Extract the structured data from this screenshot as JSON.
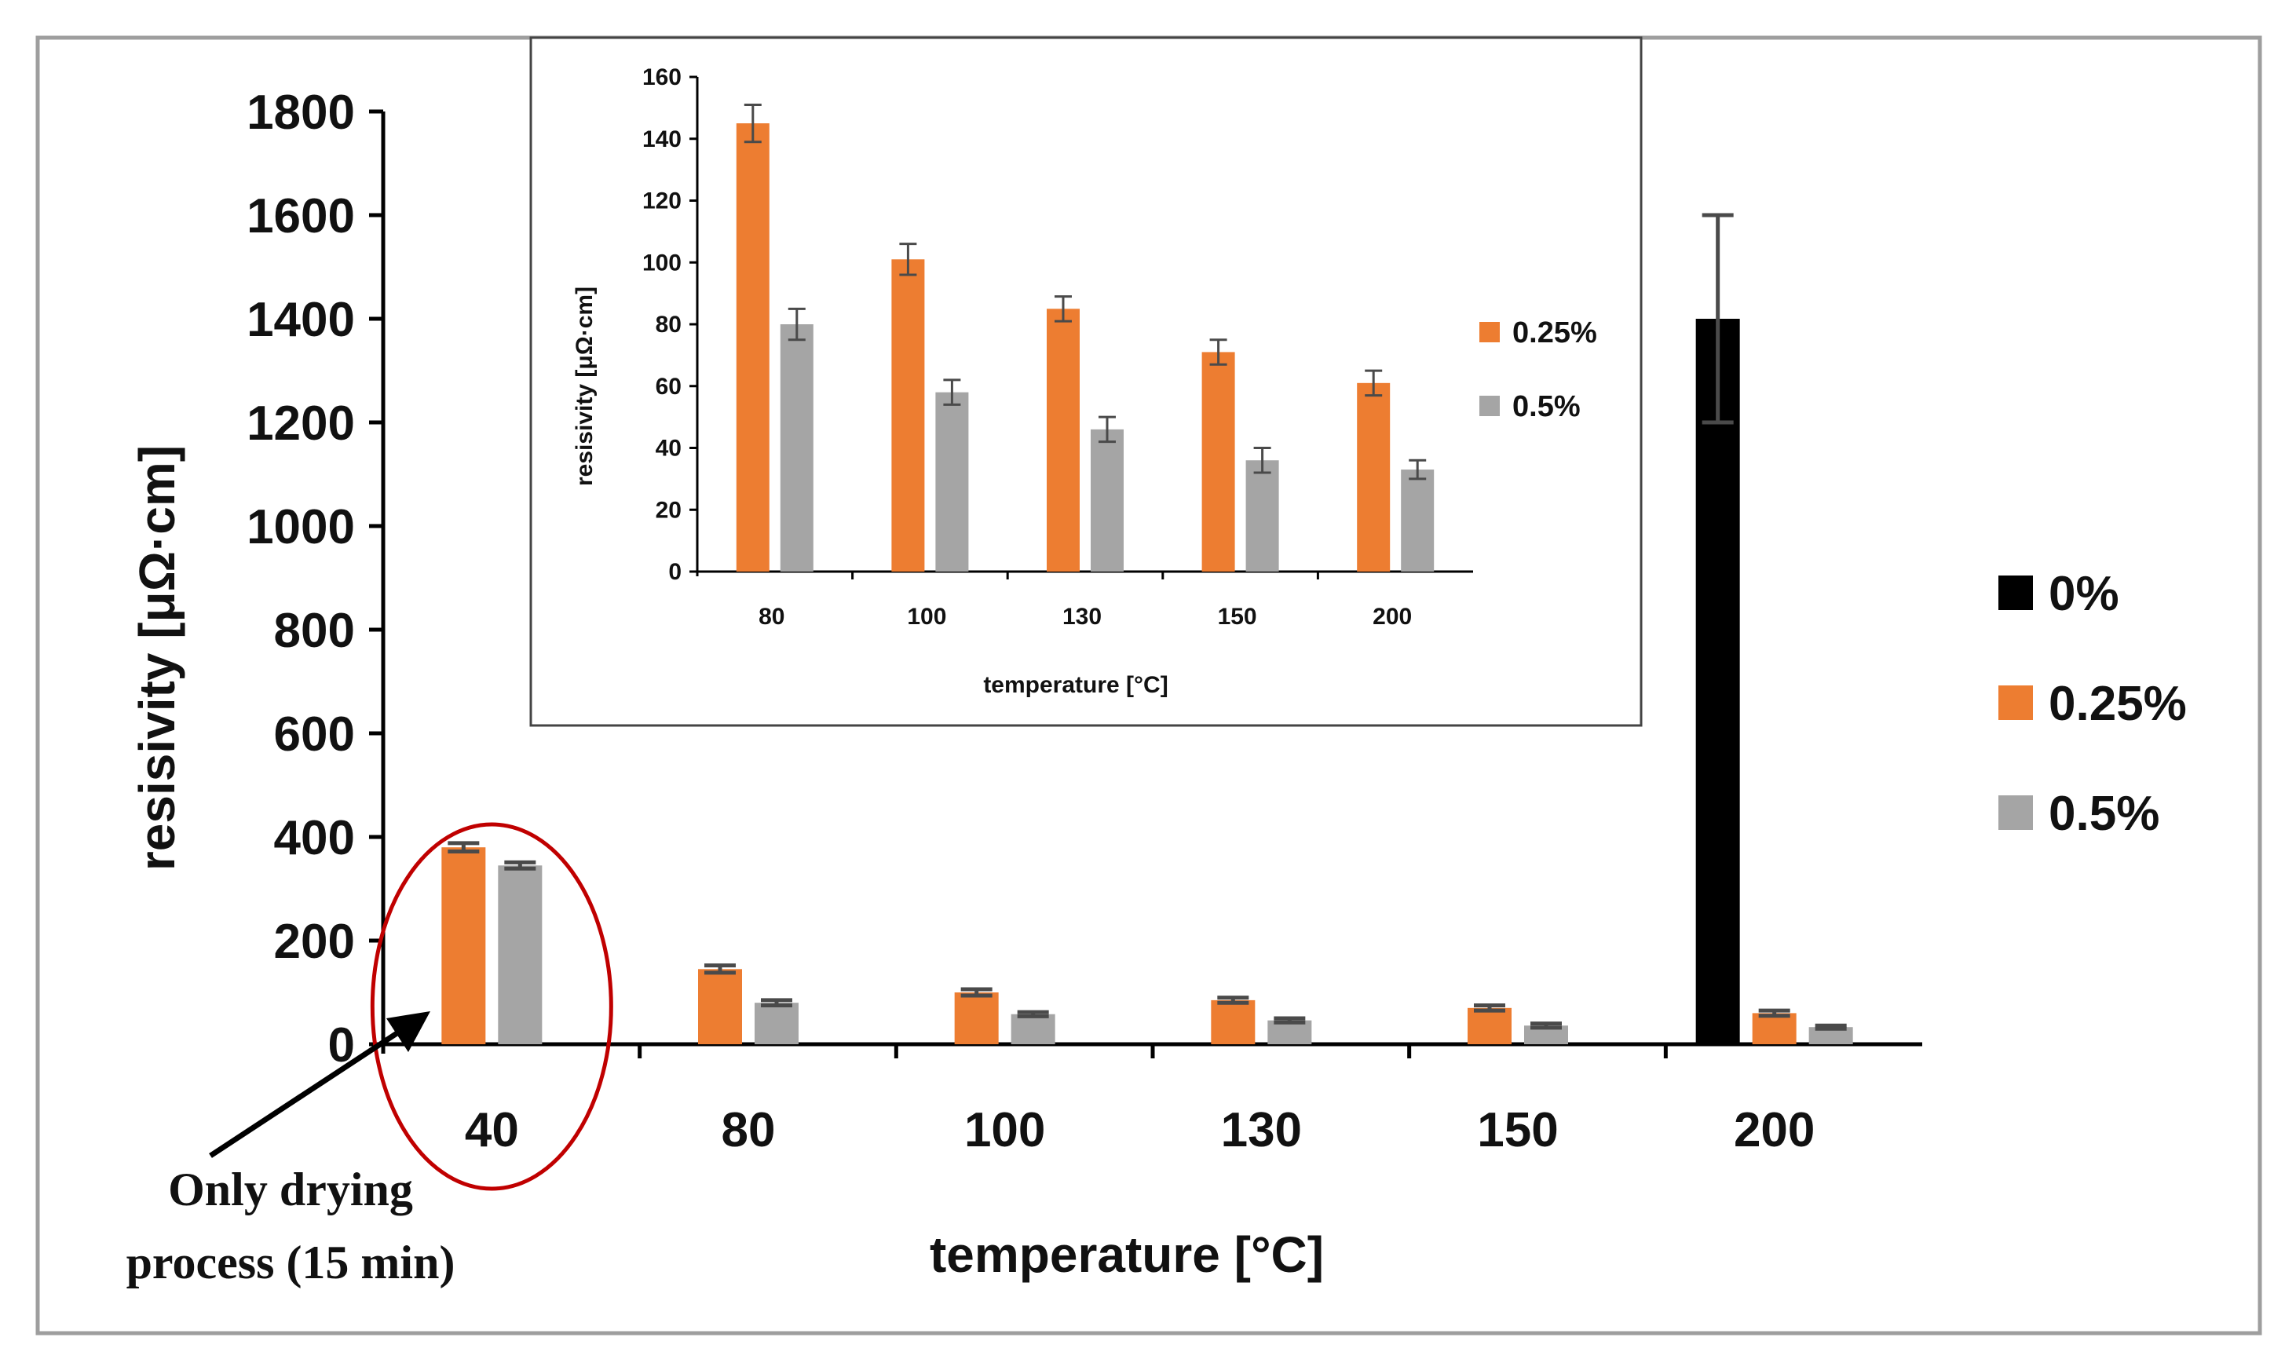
{
  "colors": {
    "s0": "#000000",
    "s025": "#ED7D31",
    "s05": "#A5A5A5",
    "errorbar": "#4a4a4a",
    "highlight": "#C00000",
    "frame": "#9e9e9e"
  },
  "annotation": {
    "line1": "Only drying",
    "line2": "process (15 min)"
  },
  "chart_data": [
    {
      "id": "main",
      "type": "bar",
      "title": "",
      "xlabel": "temperature [°C]",
      "ylabel": "resisivity [μΩ·cm]",
      "ylim": [
        0,
        1800
      ],
      "yticks": [
        0,
        200,
        400,
        600,
        800,
        1000,
        1200,
        1400,
        1600,
        1800
      ],
      "categories": [
        "40",
        "80",
        "100",
        "130",
        "150",
        "200"
      ],
      "legend_position": "right",
      "series": [
        {
          "name": "0%",
          "color": "#000000",
          "values": [
            null,
            null,
            null,
            null,
            null,
            1400
          ],
          "errors": [
            null,
            null,
            null,
            null,
            null,
            200
          ]
        },
        {
          "name": "0.25%",
          "color": "#ED7D31",
          "values": [
            380,
            145,
            100,
            85,
            70,
            60
          ],
          "errors": [
            8,
            7,
            6,
            5,
            5,
            5
          ]
        },
        {
          "name": "0.5%",
          "color": "#A5A5A5",
          "values": [
            345,
            80,
            58,
            46,
            36,
            33
          ],
          "errors": [
            6,
            5,
            4,
            4,
            4,
            3
          ]
        }
      ],
      "highlight": "40"
    },
    {
      "id": "inset",
      "type": "bar",
      "title": "",
      "xlabel": "temperature [°C]",
      "ylabel": "resisivity [μΩ·cm]",
      "ylim": [
        0,
        160
      ],
      "yticks": [
        0,
        20,
        40,
        60,
        80,
        100,
        120,
        140,
        160
      ],
      "categories": [
        "80",
        "100",
        "130",
        "150",
        "200"
      ],
      "legend_position": "right",
      "series": [
        {
          "name": "0.25%",
          "color": "#ED7D31",
          "values": [
            145,
            101,
            85,
            71,
            61
          ],
          "errors": [
            6,
            5,
            4,
            4,
            4
          ]
        },
        {
          "name": "0.5%",
          "color": "#A5A5A5",
          "values": [
            80,
            58,
            46,
            36,
            33
          ],
          "errors": [
            5,
            4,
            4,
            4,
            3
          ]
        }
      ]
    }
  ]
}
